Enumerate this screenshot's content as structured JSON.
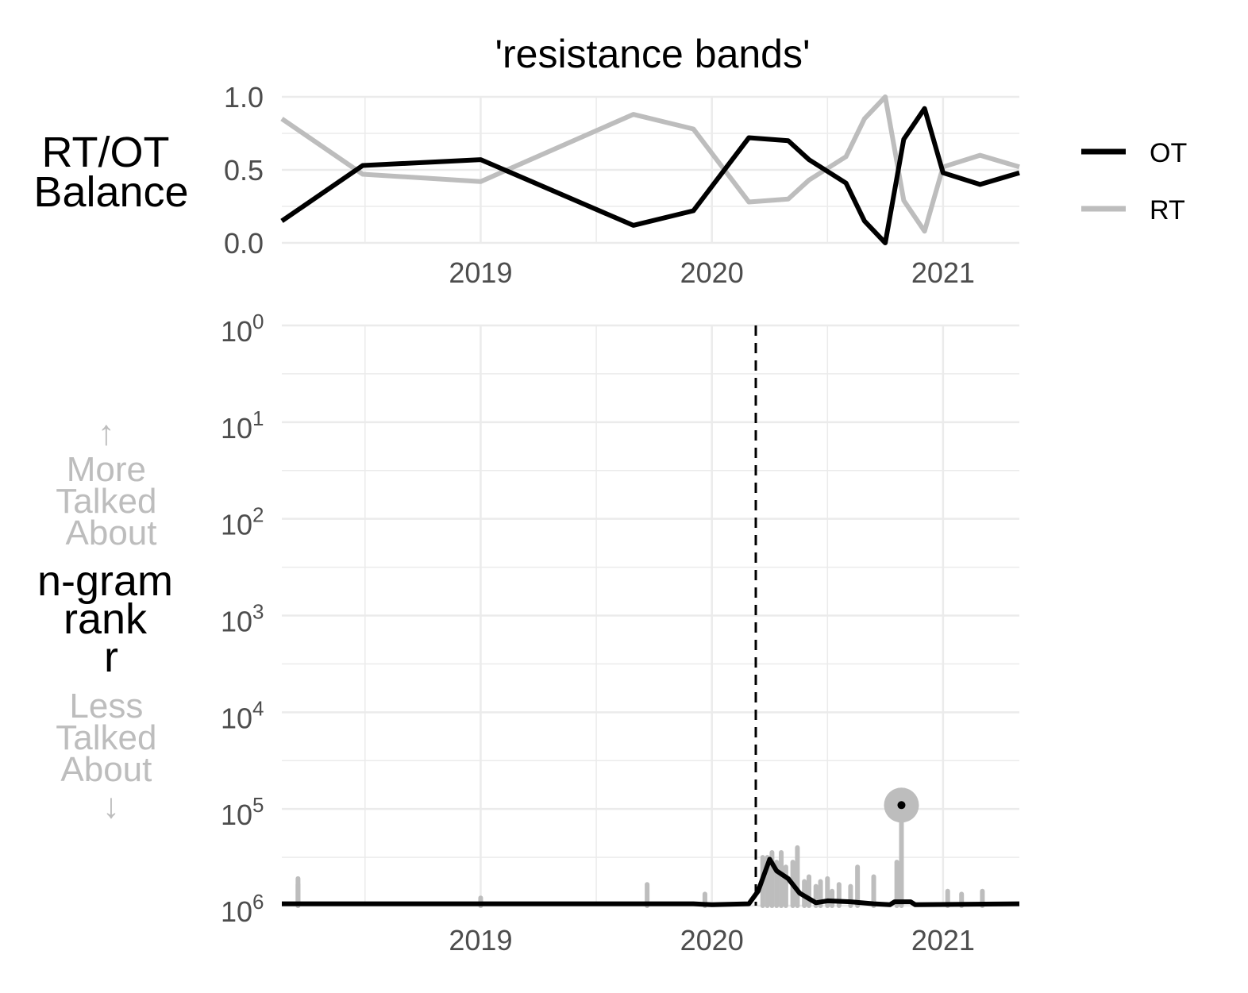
{
  "chart_data": [
    {
      "type": "line",
      "panel": "balance",
      "title": "'resistance bands'",
      "ylabel_lines": [
        "RT/OT",
        "Balance"
      ],
      "ylim": [
        0,
        1
      ],
      "yticks": [
        "0.0",
        "0.5",
        "1.0"
      ],
      "xticks": [
        "2019",
        "2020",
        "2021"
      ],
      "xlim": [
        2018.14,
        2021.33
      ],
      "legend": {
        "placement": "right"
      },
      "series": [
        {
          "name": "OT",
          "color": "#000000",
          "points": [
            [
              2018.14,
              0.15
            ],
            [
              2018.49,
              0.53
            ],
            [
              2019.0,
              0.57
            ],
            [
              2019.66,
              0.12
            ],
            [
              2019.92,
              0.22
            ],
            [
              2020.16,
              0.72
            ],
            [
              2020.33,
              0.7
            ],
            [
              2020.42,
              0.57
            ],
            [
              2020.58,
              0.41
            ],
            [
              2020.66,
              0.15
            ],
            [
              2020.75,
              0.0
            ],
            [
              2020.83,
              0.71
            ],
            [
              2020.92,
              0.92
            ],
            [
              2021.0,
              0.48
            ],
            [
              2021.16,
              0.4
            ],
            [
              2021.33,
              0.48
            ]
          ]
        },
        {
          "name": "RT",
          "color": "#bdbdbd",
          "points": [
            [
              2018.14,
              0.85
            ],
            [
              2018.49,
              0.47
            ],
            [
              2019.0,
              0.42
            ],
            [
              2019.66,
              0.88
            ],
            [
              2019.92,
              0.78
            ],
            [
              2020.16,
              0.28
            ],
            [
              2020.33,
              0.3
            ],
            [
              2020.42,
              0.43
            ],
            [
              2020.58,
              0.59
            ],
            [
              2020.66,
              0.85
            ],
            [
              2020.75,
              1.0
            ],
            [
              2020.83,
              0.29
            ],
            [
              2020.92,
              0.08
            ],
            [
              2021.0,
              0.52
            ],
            [
              2021.16,
              0.6
            ],
            [
              2021.33,
              0.52
            ]
          ]
        }
      ]
    },
    {
      "type": "line",
      "panel": "rank",
      "ylabel_lines": [
        "n-gram",
        "rank",
        "r"
      ],
      "more_hint": [
        "↑",
        "More",
        "Talked",
        "About"
      ],
      "less_hint": [
        "Less",
        "Talked",
        "About",
        "↓"
      ],
      "y_scale": "log10, reversed",
      "ylim_log10": [
        0,
        6
      ],
      "ytick_exponents": [
        "0",
        "1",
        "2",
        "3",
        "4",
        "5",
        "6"
      ],
      "xticks": [
        "2019",
        "2020",
        "2021"
      ],
      "xlim": [
        2018.14,
        2021.33
      ],
      "reference_line_x": 2020.19,
      "peak_marker": {
        "x": 2020.82,
        "rank_log10": 4.96
      },
      "series": [
        {
          "name": "OT",
          "color": "#000000",
          "points": [
            [
              2018.14,
              5.98
            ],
            [
              2019.92,
              5.98
            ],
            [
              2020.0,
              5.99
            ],
            [
              2020.16,
              5.98
            ],
            [
              2020.2,
              5.85
            ],
            [
              2020.25,
              5.52
            ],
            [
              2020.28,
              5.64
            ],
            [
              2020.33,
              5.72
            ],
            [
              2020.38,
              5.87
            ],
            [
              2020.45,
              5.97
            ],
            [
              2020.5,
              5.95
            ],
            [
              2020.6,
              5.96
            ],
            [
              2020.7,
              5.98
            ],
            [
              2020.77,
              5.99
            ],
            [
              2020.79,
              5.96
            ],
            [
              2020.86,
              5.96
            ],
            [
              2020.88,
              5.99
            ],
            [
              2021.33,
              5.98
            ]
          ]
        },
        {
          "name": "RT",
          "color": "#bdbdbd",
          "spikes": [
            [
              2018.21,
              5.78
            ],
            [
              2018.21,
              5.72
            ],
            [
              2019.0,
              5.92
            ],
            [
              2019.72,
              5.78
            ],
            [
              2019.97,
              5.88
            ],
            [
              2020.22,
              5.5
            ],
            [
              2020.24,
              5.5
            ],
            [
              2020.26,
              5.45
            ],
            [
              2020.28,
              5.55
            ],
            [
              2020.3,
              5.45
            ],
            [
              2020.32,
              5.6
            ],
            [
              2020.35,
              5.55
            ],
            [
              2020.37,
              5.4
            ],
            [
              2020.4,
              5.75
            ],
            [
              2020.42,
              5.7
            ],
            [
              2020.45,
              5.8
            ],
            [
              2020.47,
              5.75
            ],
            [
              2020.5,
              5.72
            ],
            [
              2020.52,
              5.85
            ],
            [
              2020.55,
              5.78
            ],
            [
              2020.6,
              5.8
            ],
            [
              2020.63,
              5.6
            ],
            [
              2020.7,
              5.7
            ],
            [
              2020.8,
              5.55
            ],
            [
              2020.82,
              4.96
            ],
            [
              2021.02,
              5.85
            ],
            [
              2021.08,
              5.88
            ],
            [
              2021.17,
              5.85
            ]
          ]
        }
      ]
    }
  ]
}
